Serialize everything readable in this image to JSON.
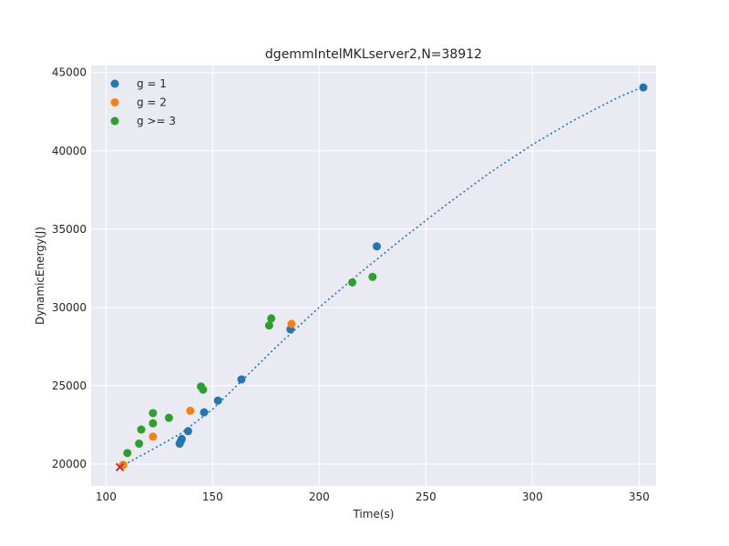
{
  "chart_data": {
    "type": "scatter",
    "title": "dgemmIntelMKLserver2,N=38912",
    "xlabel": "Time(s)",
    "ylabel": "DynamicEnergy(J)",
    "xlim": [
      93,
      358
    ],
    "ylim": [
      18600,
      45450
    ],
    "xticks": [
      100,
      150,
      200,
      250,
      300,
      350
    ],
    "yticks": [
      20000,
      25000,
      30000,
      35000,
      40000,
      45000
    ],
    "grid": true,
    "legend_position": "top-left",
    "background_color": "#eaeaf2",
    "series": [
      {
        "name": "g = 1",
        "color": "#1f77b4",
        "points": [
          {
            "x": 134.5,
            "y": 21300
          },
          {
            "x": 135.0,
            "y": 21450
          },
          {
            "x": 135.5,
            "y": 21600
          },
          {
            "x": 138.5,
            "y": 22100
          },
          {
            "x": 146.0,
            "y": 23300
          },
          {
            "x": 152.5,
            "y": 24050
          },
          {
            "x": 163.5,
            "y": 25400
          },
          {
            "x": 186.5,
            "y": 28600
          },
          {
            "x": 227.0,
            "y": 33900
          },
          {
            "x": 352.0,
            "y": 44050
          }
        ]
      },
      {
        "name": "g = 2",
        "color": "#ff7f0e",
        "points": [
          {
            "x": 108.0,
            "y": 19950
          },
          {
            "x": 122.0,
            "y": 21750
          },
          {
            "x": 139.5,
            "y": 23400
          },
          {
            "x": 187.0,
            "y": 28950
          }
        ]
      },
      {
        "name": "g >= 3",
        "color": "#2ca02c",
        "points": [
          {
            "x": 110.0,
            "y": 20700
          },
          {
            "x": 115.5,
            "y": 21300
          },
          {
            "x": 116.5,
            "y": 22200
          },
          {
            "x": 122.0,
            "y": 22600
          },
          {
            "x": 122.0,
            "y": 23250
          },
          {
            "x": 129.5,
            "y": 22950
          },
          {
            "x": 144.5,
            "y": 24950
          },
          {
            "x": 145.5,
            "y": 24750
          },
          {
            "x": 176.5,
            "y": 28850
          },
          {
            "x": 177.5,
            "y": 29300
          },
          {
            "x": 215.5,
            "y": 31600
          },
          {
            "x": 225.0,
            "y": 31950
          }
        ]
      }
    ],
    "fit_curve": {
      "style": "dotted",
      "color": "#1f77b4",
      "x": [
        106.5,
        120,
        135,
        150,
        165,
        180,
        200,
        220,
        240,
        260,
        280,
        300,
        320,
        340,
        352
      ],
      "y": [
        19800,
        20800,
        21950,
        23500,
        25500,
        27500,
        30000,
        32300,
        34500,
        36600,
        38600,
        40400,
        42000,
        43400,
        44100
      ]
    },
    "marker_point": {
      "x": 106.5,
      "y": 19800,
      "symbol": "x",
      "color": "#d62728"
    }
  }
}
